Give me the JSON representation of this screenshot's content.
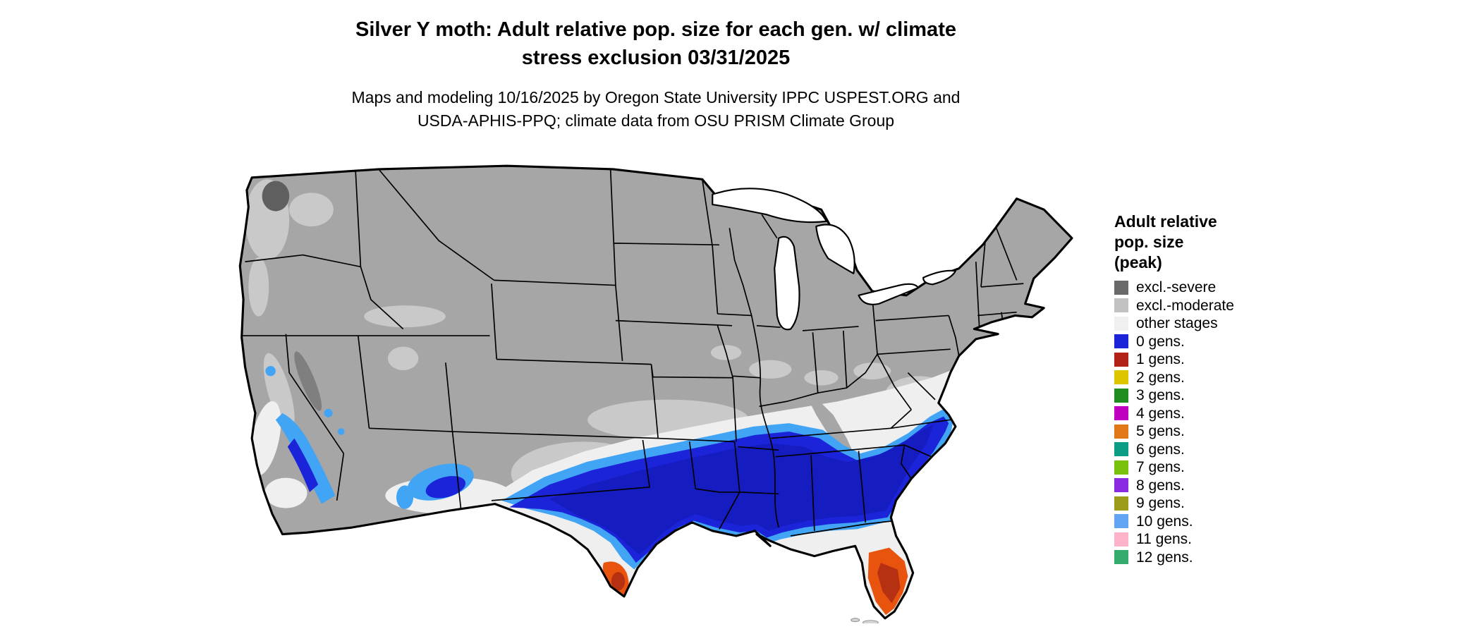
{
  "title": {
    "line1": "Silver Y moth: Adult relative pop. size for each gen. w/ climate",
    "line2": "stress exclusion 03/31/2025"
  },
  "subtitle": {
    "line1": "Maps and modeling 10/16/2025 by Oregon State University IPPC USPEST.ORG and",
    "line2": "USDA-APHIS-PPQ; climate data from OSU PRISM Climate Group"
  },
  "legend": {
    "title_lines": [
      "Adult relative",
      "pop. size",
      "(peak)"
    ],
    "items": [
      {
        "label": "excl.-severe",
        "color": "#696969"
      },
      {
        "label": "excl.-moderate",
        "color": "#c2c2c2"
      },
      {
        "label": "other stages",
        "color": "#f0f0f0"
      },
      {
        "label": "0 gens.",
        "color": "#1b24d8"
      },
      {
        "label": "1 gens.",
        "color": "#b22218"
      },
      {
        "label": "2 gens.",
        "color": "#ddc500"
      },
      {
        "label": "3 gens.",
        "color": "#1f8c1f"
      },
      {
        "label": "4 gens.",
        "color": "#bf00bf"
      },
      {
        "label": "5 gens.",
        "color": "#e07818"
      },
      {
        "label": "6 gens.",
        "color": "#0d9c86"
      },
      {
        "label": "7 gens.",
        "color": "#79c00a"
      },
      {
        "label": "8 gens.",
        "color": "#8a2be2"
      },
      {
        "label": "9 gens.",
        "color": "#9c9c1a"
      },
      {
        "label": "10 gens.",
        "color": "#63a5f5"
      },
      {
        "label": "11 gens.",
        "color": "#ffb3c8"
      },
      {
        "label": "12 gens.",
        "color": "#35ac6d"
      }
    ]
  },
  "map": {
    "region": "Contiguous United States generation map",
    "colors": {
      "base_excluded": "#a6a6a6",
      "excluded_moderate": "#c9c9c9",
      "excluded_severe": "#5f5f5f",
      "other_stages": "#efefef",
      "gen0_core": "#1b24d8",
      "gen0_dense": "#151cc0",
      "gen0_fringe": "#42a4f5",
      "gen1_core": "#b63012",
      "gen1_edge": "#e8540e",
      "water": "#ffffff",
      "border": "#000000",
      "keys_gray": "#d5d5d5"
    }
  }
}
